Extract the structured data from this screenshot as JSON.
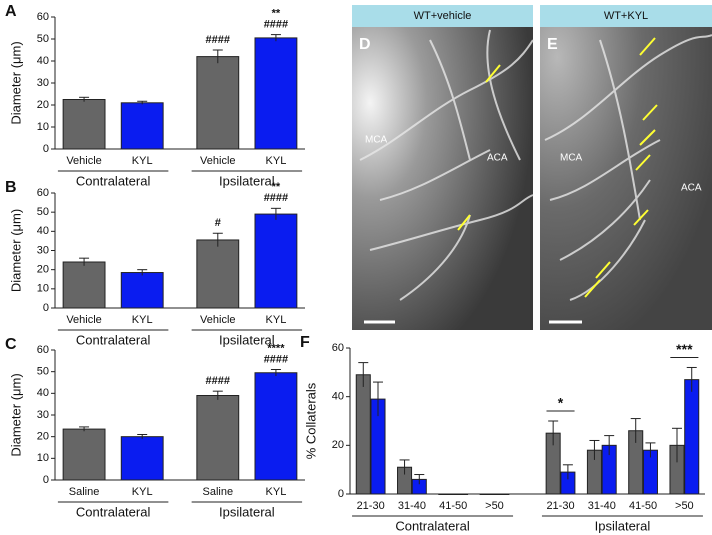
{
  "chart_data": [
    {
      "type": "bar",
      "panel": "A",
      "ylabel": "Diameter (μm)",
      "categories": [
        "Vehicle",
        "KYL",
        "Vehicle",
        "KYL"
      ],
      "groups": [
        "Contralateral",
        "Ipsilateral"
      ],
      "values": [
        22.5,
        21,
        42,
        50.5
      ],
      "errors": [
        1,
        0.7,
        3,
        1.5
      ],
      "colors": [
        "#666666",
        "#0a1cf0",
        "#666666",
        "#0a1cf0"
      ],
      "annotations": [
        [],
        [],
        [
          "####"
        ],
        [
          "**",
          "####"
        ]
      ],
      "ylim": [
        0,
        60
      ],
      "yticks": [
        0,
        10,
        20,
        30,
        40,
        50,
        60
      ]
    },
    {
      "type": "bar",
      "panel": "B",
      "ylabel": "Diameter (μm)",
      "categories": [
        "Vehicle",
        "KYL",
        "Vehicle",
        "KYL"
      ],
      "groups": [
        "Contralateral",
        "Ipsilateral"
      ],
      "values": [
        24,
        18.5,
        35.5,
        49
      ],
      "errors": [
        2,
        1.5,
        3.5,
        3
      ],
      "colors": [
        "#666666",
        "#0a1cf0",
        "#666666",
        "#0a1cf0"
      ],
      "annotations": [
        [],
        [],
        [
          "#"
        ],
        [
          "**",
          "####"
        ]
      ],
      "ylim": [
        0,
        60
      ],
      "yticks": [
        0,
        10,
        20,
        30,
        40,
        50,
        60
      ]
    },
    {
      "type": "bar",
      "panel": "C",
      "ylabel": "Diameter (μm)",
      "categories": [
        "Saline",
        "KYL",
        "Saline",
        "KYL"
      ],
      "groups": [
        "Contralateral",
        "Ipsilateral"
      ],
      "values": [
        23.5,
        20,
        39,
        49.5
      ],
      "errors": [
        1,
        1,
        2,
        1.5
      ],
      "colors": [
        "#666666",
        "#0a1cf0",
        "#666666",
        "#0a1cf0"
      ],
      "annotations": [
        [],
        [],
        [
          "####"
        ],
        [
          "****",
          "####"
        ]
      ],
      "ylim": [
        0,
        60
      ],
      "yticks": [
        0,
        10,
        20,
        30,
        40,
        50,
        60
      ]
    },
    {
      "type": "grouped_bar",
      "panel": "F",
      "ylabel": "%  Collaterals",
      "categories": [
        "21-30",
        "31-40",
        "41-50",
        ">50",
        "21-30",
        "31-40",
        "41-50",
        ">50"
      ],
      "groups": [
        "Contralateral",
        "Ipsilateral"
      ],
      "series": [
        {
          "color": "#666666",
          "values": [
            49,
            11,
            0,
            0,
            25,
            18,
            26,
            20
          ],
          "errors": [
            5,
            3,
            0,
            0,
            5,
            4,
            5,
            7
          ]
        },
        {
          "color": "#0a1cf0",
          "values": [
            39,
            6,
            0,
            0,
            9,
            20,
            18,
            47
          ],
          "errors": [
            7,
            2,
            0,
            0,
            3,
            4,
            3,
            5
          ]
        }
      ],
      "annotations": [
        {
          "category": 4,
          "text": "*"
        },
        {
          "category": 7,
          "text": "***"
        }
      ],
      "ylim": [
        0,
        60
      ],
      "yticks": [
        0,
        20,
        40,
        60
      ]
    }
  ],
  "images": [
    {
      "header": "WT+vehicle",
      "panel": "D",
      "labels": [
        "MCA",
        "ACA"
      ]
    },
    {
      "header": "WT+KYL",
      "panel": "E",
      "labels": [
        "MCA",
        "ACA"
      ]
    }
  ]
}
